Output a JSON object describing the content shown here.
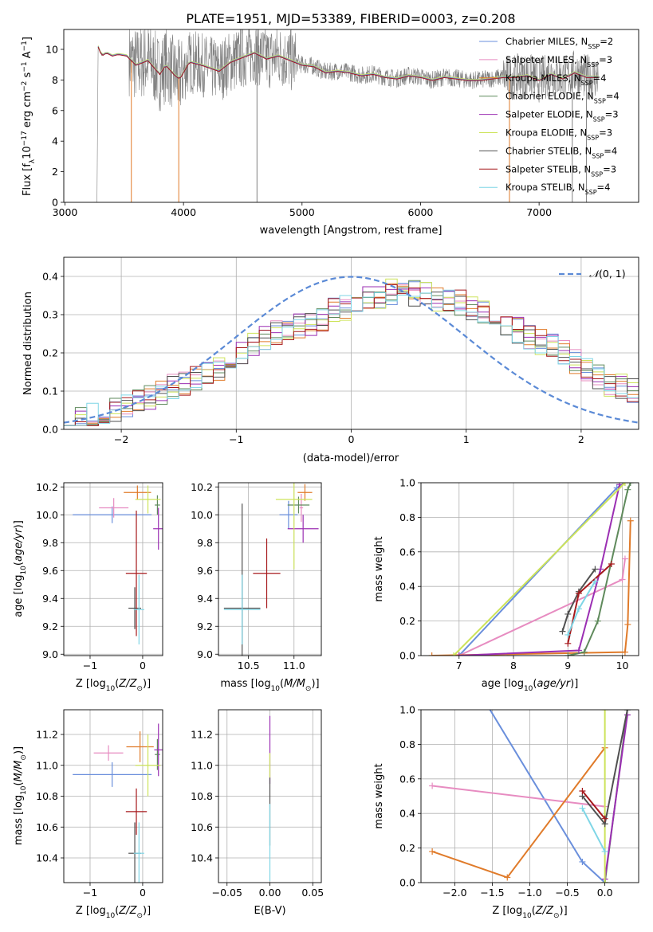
{
  "title": "PLATE=1951, MJD=53389, FIBERID=0003, z=0.208",
  "colors": {
    "Chabrier MILES": "#6a8fdc",
    "Salpeter MILES": "#e78cc1",
    "Kroupa MILES": "#e07b2a",
    "Chabrier ELODIE": "#5f8a5c",
    "Salpeter ELODIE": "#9b2fb3",
    "Kroupa ELODIE": "#cde35a",
    "Chabrier STELIB": "#505050",
    "Salpeter STELIB": "#a6191c",
    "Kroupa STELIB": "#7fd6e6",
    "spectrum": "#808080",
    "gaussian": "#5b8ad6"
  },
  "chart_data": [
    {
      "type": "line",
      "xlabel": "wavelength [Angstrom, rest frame]",
      "ylabel": "Flux [f_λ 10^-17 erg cm^-2 s^-1 A^-1]",
      "xlim": [
        2990,
        7840
      ],
      "ylim": [
        0,
        11.3
      ],
      "xticks": [
        3000,
        4000,
        5000,
        6000,
        7000
      ],
      "yticks": [
        0,
        2,
        4,
        6,
        8,
        10
      ],
      "legend_position": "upper right",
      "legend": [
        {
          "name": "Chabrier MILES",
          "nssp": "2"
        },
        {
          "name": "Salpeter MILES",
          "nssp": "3"
        },
        {
          "name": "Kroupa MILES",
          "nssp": "4"
        },
        {
          "name": "Chabrier ELODIE",
          "nssp": "4"
        },
        {
          "name": "Salpeter ELODIE",
          "nssp": "3"
        },
        {
          "name": "Kroupa ELODIE",
          "nssp": "3"
        },
        {
          "name": "Chabrier STELIB",
          "nssp": "4"
        },
        {
          "name": "Salpeter STELIB",
          "nssp": "3"
        },
        {
          "name": "Kroupa STELIB",
          "nssp": "4"
        }
      ],
      "spectrum_profile": [
        [
          3250,
          0
        ],
        [
          3270,
          0
        ],
        [
          3280,
          10.2
        ],
        [
          3310,
          9.6
        ],
        [
          3350,
          9.8
        ],
        [
          3400,
          9.6
        ],
        [
          3450,
          9.7
        ],
        [
          3520,
          9.6
        ],
        [
          3600,
          9.0
        ],
        [
          3700,
          9.3
        ],
        [
          3800,
          8.4
        ],
        [
          3850,
          9.0
        ],
        [
          3930,
          8.3
        ],
        [
          3970,
          8.1
        ],
        [
          4050,
          9.2
        ],
        [
          4150,
          9.0
        ],
        [
          4300,
          8.6
        ],
        [
          4400,
          9.2
        ],
        [
          4500,
          9.5
        ],
        [
          4600,
          9.8
        ],
        [
          4700,
          9.4
        ],
        [
          4800,
          9.6
        ],
        [
          4900,
          9.3
        ],
        [
          5000,
          9.0
        ],
        [
          5100,
          8.9
        ],
        [
          5200,
          8.5
        ],
        [
          5300,
          8.6
        ],
        [
          5400,
          8.5
        ],
        [
          5500,
          8.3
        ],
        [
          5600,
          8.4
        ],
        [
          5700,
          8.2
        ],
        [
          5800,
          8.1
        ],
        [
          5900,
          8.3
        ],
        [
          6000,
          8.2
        ],
        [
          6100,
          8.0
        ],
        [
          6200,
          8.2
        ],
        [
          6300,
          8.1
        ],
        [
          6400,
          8.0
        ],
        [
          6500,
          8.0
        ],
        [
          6600,
          8.1
        ],
        [
          6700,
          8.2
        ],
        [
          6800,
          8.2
        ],
        [
          6900,
          8.3
        ],
        [
          7000,
          8.0
        ],
        [
          7100,
          8.4
        ],
        [
          7200,
          8.1
        ],
        [
          7300,
          8.5
        ],
        [
          7400,
          8.2
        ],
        [
          7500,
          8.2
        ]
      ],
      "spectrum_drops": [
        3270,
        3560,
        3960,
        4620,
        6750,
        7280,
        7400
      ]
    },
    {
      "type": "bar",
      "xlabel": "(data-model)/error",
      "ylabel": "Normed distribution",
      "xlim": [
        -2.5,
        2.5
      ],
      "ylim": [
        0,
        0.45
      ],
      "xticks": [
        -2,
        -1,
        0,
        1,
        2
      ],
      "yticks": [
        0.0,
        0.1,
        0.2,
        0.3,
        0.4
      ],
      "legend_label": "N(0,1)",
      "bin_width": 0.1,
      "base_histogram": [
        0.025,
        0.03,
        0.035,
        0.045,
        0.05,
        0.06,
        0.07,
        0.085,
        0.1,
        0.11,
        0.12,
        0.13,
        0.145,
        0.16,
        0.18,
        0.2,
        0.22,
        0.24,
        0.255,
        0.265,
        0.27,
        0.28,
        0.29,
        0.31,
        0.32,
        0.33,
        0.345,
        0.35,
        0.36,
        0.36,
        0.355,
        0.35,
        0.34,
        0.34,
        0.33,
        0.32,
        0.305,
        0.29,
        0.275,
        0.26,
        0.24,
        0.23,
        0.215,
        0.2,
        0.18,
        0.16,
        0.14,
        0.12,
        0.11,
        0.1
      ]
    },
    {
      "type": "scatter",
      "xlabel": "Z [log10(Z/Z_sun)]",
      "ylabel": "age [log10(age/yr)]",
      "xlim": [
        -1.5,
        0.38
      ],
      "ylim": [
        8.99,
        10.23
      ],
      "xticks": [
        -1,
        0
      ],
      "yticks": [
        9.0,
        9.2,
        9.4,
        9.6,
        9.8,
        10.0,
        10.2
      ],
      "points": [
        {
          "model": "Chabrier MILES",
          "x": -0.58,
          "xerr": 0.75,
          "y": 10.0,
          "yerr": 0.06
        },
        {
          "model": "Salpeter MILES",
          "x": -0.55,
          "xerr": 0.28,
          "y": 10.05,
          "yerr": 0.07
        },
        {
          "model": "Kroupa MILES",
          "x": -0.1,
          "xerr": 0.26,
          "y": 10.16,
          "yerr": 0.05
        },
        {
          "model": "Chabrier ELODIE",
          "x": 0.28,
          "xerr": 0.05,
          "y": 10.07,
          "yerr": 0.07
        },
        {
          "model": "Salpeter ELODIE",
          "x": 0.3,
          "xerr": 0.1,
          "y": 9.9,
          "yerr": 0.15
        },
        {
          "model": "Kroupa ELODIE",
          "x": 0.1,
          "xerr": 0.24,
          "y": 10.11,
          "yerr": 0.1
        },
        {
          "model": "Chabrier STELIB",
          "x": -0.15,
          "xerr": 0.12,
          "y": 9.33,
          "yerr": 0.15
        },
        {
          "model": "Salpeter STELIB",
          "x": -0.12,
          "xerr": 0.2,
          "y": 9.58,
          "yerr": 0.45
        },
        {
          "model": "Kroupa STELIB",
          "x": -0.07,
          "xerr": 0.1,
          "y": 9.32,
          "yerr": 0.25
        }
      ]
    },
    {
      "type": "scatter",
      "xlabel": "mass [log10(M/M_sun)]",
      "xlim": [
        10.17,
        11.3
      ],
      "ylim": [
        8.99,
        10.23
      ],
      "xticks": [
        10.5,
        11.0
      ],
      "yticks": [
        9.0,
        9.2,
        9.4,
        9.6,
        9.8,
        10.0,
        10.2
      ],
      "points": [
        {
          "model": "Chabrier MILES",
          "x": 10.94,
          "xerr": 0.1,
          "y": 10.0,
          "yerr": 0.1
        },
        {
          "model": "Salpeter MILES",
          "x": 11.08,
          "xerr": 0.02,
          "y": 10.05,
          "yerr": 0.1
        },
        {
          "model": "Kroupa MILES",
          "x": 11.12,
          "xerr": 0.08,
          "y": 10.16,
          "yerr": 0.06
        },
        {
          "model": "Chabrier ELODIE",
          "x": 11.05,
          "xerr": 0.12,
          "y": 10.07,
          "yerr": 0.06
        },
        {
          "model": "Salpeter ELODIE",
          "x": 11.1,
          "xerr": 0.17,
          "y": 9.9,
          "yerr": 0.1
        },
        {
          "model": "Kroupa ELODIE",
          "x": 11.0,
          "xerr": 0.2,
          "y": 10.11,
          "yerr": 0.5
        },
        {
          "model": "Chabrier STELIB",
          "x": 10.43,
          "xerr": 0.2,
          "y": 9.33,
          "yerr": 0.75
        },
        {
          "model": "Salpeter STELIB",
          "x": 10.7,
          "xerr": 0.15,
          "y": 9.58,
          "yerr": 0.25
        },
        {
          "model": "Kroupa STELIB",
          "x": 10.43,
          "xerr": 0.2,
          "y": 9.32,
          "yerr": 0.25
        }
      ]
    },
    {
      "type": "line",
      "xlabel": "age [log10(age/yr)]",
      "ylabel": "mass weight",
      "xlim": [
        6.3,
        10.3
      ],
      "ylim": [
        0,
        1.0
      ],
      "xticks": [
        7,
        8,
        9,
        10
      ],
      "yticks": [
        0.0,
        0.2,
        0.4,
        0.6,
        0.8,
        1.0
      ],
      "series": [
        {
          "model": "Chabrier MILES",
          "points": [
            [
              7.0,
              0.0
            ],
            [
              9.9,
              0.97
            ],
            [
              10.05,
              1.0
            ]
          ]
        },
        {
          "model": "Salpeter MILES",
          "points": [
            [
              7.0,
              0.0
            ],
            [
              10.0,
              0.44
            ],
            [
              10.05,
              0.56
            ]
          ]
        },
        {
          "model": "Kroupa MILES",
          "points": [
            [
              6.5,
              0.0
            ],
            [
              10.05,
              0.02
            ],
            [
              10.1,
              0.18
            ],
            [
              10.15,
              0.78
            ]
          ]
        },
        {
          "model": "Chabrier ELODIE",
          "points": [
            [
              9.0,
              0.0
            ],
            [
              9.3,
              0.02
            ],
            [
              9.55,
              0.2
            ],
            [
              10.1,
              0.96
            ],
            [
              10.15,
              1.0
            ]
          ]
        },
        {
          "model": "Salpeter ELODIE",
          "points": [
            [
              7.0,
              0.0
            ],
            [
              9.2,
              0.03
            ],
            [
              9.6,
              0.5
            ],
            [
              9.95,
              0.99
            ]
          ]
        },
        {
          "model": "Kroupa ELODIE",
          "points": [
            [
              6.9,
              0.0
            ],
            [
              10.05,
              1.0
            ]
          ]
        },
        {
          "model": "Chabrier STELIB",
          "points": [
            [
              8.9,
              0.14
            ],
            [
              9.0,
              0.24
            ],
            [
              9.2,
              0.37
            ],
            [
              9.5,
              0.5
            ]
          ]
        },
        {
          "model": "Salpeter STELIB",
          "points": [
            [
              9.0,
              0.07
            ],
            [
              9.2,
              0.36
            ],
            [
              9.8,
              0.53
            ]
          ]
        },
        {
          "model": "Kroupa STELIB",
          "points": [
            [
              9.0,
              0.12
            ],
            [
              9.2,
              0.27
            ],
            [
              9.5,
              0.43
            ]
          ]
        }
      ]
    },
    {
      "type": "scatter",
      "xlabel": "Z [log10(Z/Z_sun)]",
      "ylabel": "mass [log10(M/M_sun)]",
      "xlim": [
        -1.5,
        0.38
      ],
      "ylim": [
        10.24,
        11.36
      ],
      "xticks": [
        -1,
        0
      ],
      "yticks": [
        10.4,
        10.6,
        10.8,
        11.0,
        11.2
      ],
      "points": [
        {
          "model": "Chabrier MILES",
          "x": -0.58,
          "xerr": 0.75,
          "y": 10.94,
          "yerr": 0.08
        },
        {
          "model": "Salpeter MILES",
          "x": -0.65,
          "xerr": 0.28,
          "y": 11.08,
          "yerr": 0.05
        },
        {
          "model": "Kroupa MILES",
          "x": -0.05,
          "xerr": 0.26,
          "y": 11.12,
          "yerr": 0.1
        },
        {
          "model": "Chabrier ELODIE",
          "x": 0.28,
          "xerr": 0.05,
          "y": 11.07,
          "yerr": 0.1
        },
        {
          "model": "Salpeter ELODIE",
          "x": 0.3,
          "xerr": 0.08,
          "y": 11.1,
          "yerr": 0.17
        },
        {
          "model": "Kroupa ELODIE",
          "x": 0.1,
          "xerr": 0.24,
          "y": 11.0,
          "yerr": 0.2
        },
        {
          "model": "Chabrier STELIB",
          "x": -0.15,
          "xerr": 0.12,
          "y": 10.43,
          "yerr": 0.2
        },
        {
          "model": "Salpeter STELIB",
          "x": -0.12,
          "xerr": 0.2,
          "y": 10.7,
          "yerr": 0.15
        },
        {
          "model": "Kroupa STELIB",
          "x": -0.07,
          "xerr": 0.1,
          "y": 10.43,
          "yerr": 0.2
        }
      ]
    },
    {
      "type": "scatter",
      "xlabel": "E(B-V)",
      "xlim": [
        -0.06,
        0.06
      ],
      "ylim": [
        10.24,
        11.36
      ],
      "xticks": [
        -0.05,
        0.0,
        0.05
      ],
      "yticks": [
        10.4,
        10.6,
        10.8,
        11.0,
        11.2
      ],
      "points": [
        {
          "model": "Salpeter ELODIE",
          "x": 0.0,
          "y": 11.1,
          "yerr": 0.22
        },
        {
          "model": "Kroupa ELODIE",
          "x": 0.0,
          "y": 11.0,
          "yerr": 0.08
        },
        {
          "model": "Chabrier STELIB",
          "x": 0.0,
          "y": 10.7,
          "yerr": 0.22
        },
        {
          "model": "Kroupa STELIB",
          "x": 0.0,
          "y": 10.5,
          "yerr": 0.25
        }
      ]
    },
    {
      "type": "line",
      "xlabel": "Z [log10(Z/Z_sun)]",
      "ylabel": "mass weight",
      "xlim": [
        -2.45,
        0.45
      ],
      "ylim": [
        0,
        1.0
      ],
      "xticks": [
        -2.0,
        -1.5,
        -1.0,
        -0.5,
        0.0
      ],
      "yticks": [
        0.0,
        0.2,
        0.4,
        0.6,
        0.8,
        1.0
      ],
      "series": [
        {
          "model": "Chabrier MILES",
          "points": [
            [
              -1.6,
              1.05
            ],
            [
              -0.3,
              0.12
            ],
            [
              0.0,
              0.0
            ]
          ]
        },
        {
          "model": "Salpeter MILES",
          "points": [
            [
              -2.3,
              0.56
            ],
            [
              0.0,
              0.44
            ]
          ]
        },
        {
          "model": "Kroupa MILES",
          "points": [
            [
              -2.3,
              0.18
            ],
            [
              -1.3,
              0.03
            ],
            [
              0.0,
              0.78
            ]
          ]
        },
        {
          "model": "Chabrier ELODIE",
          "points": [
            [
              0.0,
              0.0
            ],
            [
              0.3,
              1.0
            ]
          ]
        },
        {
          "model": "Salpeter ELODIE",
          "points": [
            [
              0.0,
              0.02
            ],
            [
              0.3,
              0.97
            ]
          ]
        },
        {
          "model": "Kroupa ELODIE",
          "points": [
            [
              0.0,
              0.0
            ],
            [
              0.0,
              1.0
            ]
          ]
        },
        {
          "model": "Chabrier STELIB",
          "points": [
            [
              -0.3,
              0.5
            ],
            [
              0.0,
              0.34
            ],
            [
              0.3,
              1.0
            ]
          ]
        },
        {
          "model": "Salpeter STELIB",
          "points": [
            [
              -0.3,
              0.53
            ],
            [
              0.0,
              0.37
            ]
          ]
        },
        {
          "model": "Kroupa STELIB",
          "points": [
            [
              -0.3,
              0.43
            ],
            [
              0.0,
              0.18
            ]
          ]
        }
      ]
    }
  ]
}
